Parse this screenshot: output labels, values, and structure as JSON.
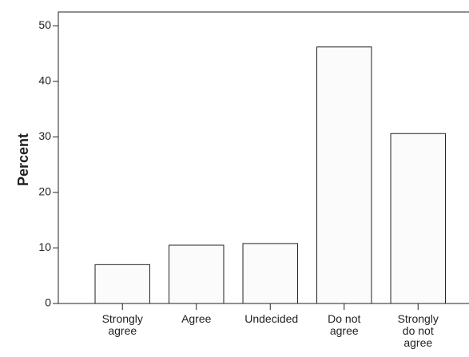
{
  "chart_data": {
    "type": "bar",
    "y_label": "Percent",
    "categories": [
      "Strongly agree",
      "Agree",
      "Undecided",
      "Do not agree",
      "Strongly do not agree"
    ],
    "values": [
      7,
      10.5,
      10.8,
      46.2,
      30.6
    ],
    "color": "#fbfbfb",
    "ylim": [
      0,
      52.5
    ],
    "yticks": [
      0,
      10,
      20,
      30,
      40,
      50
    ],
    "grid": false
  }
}
